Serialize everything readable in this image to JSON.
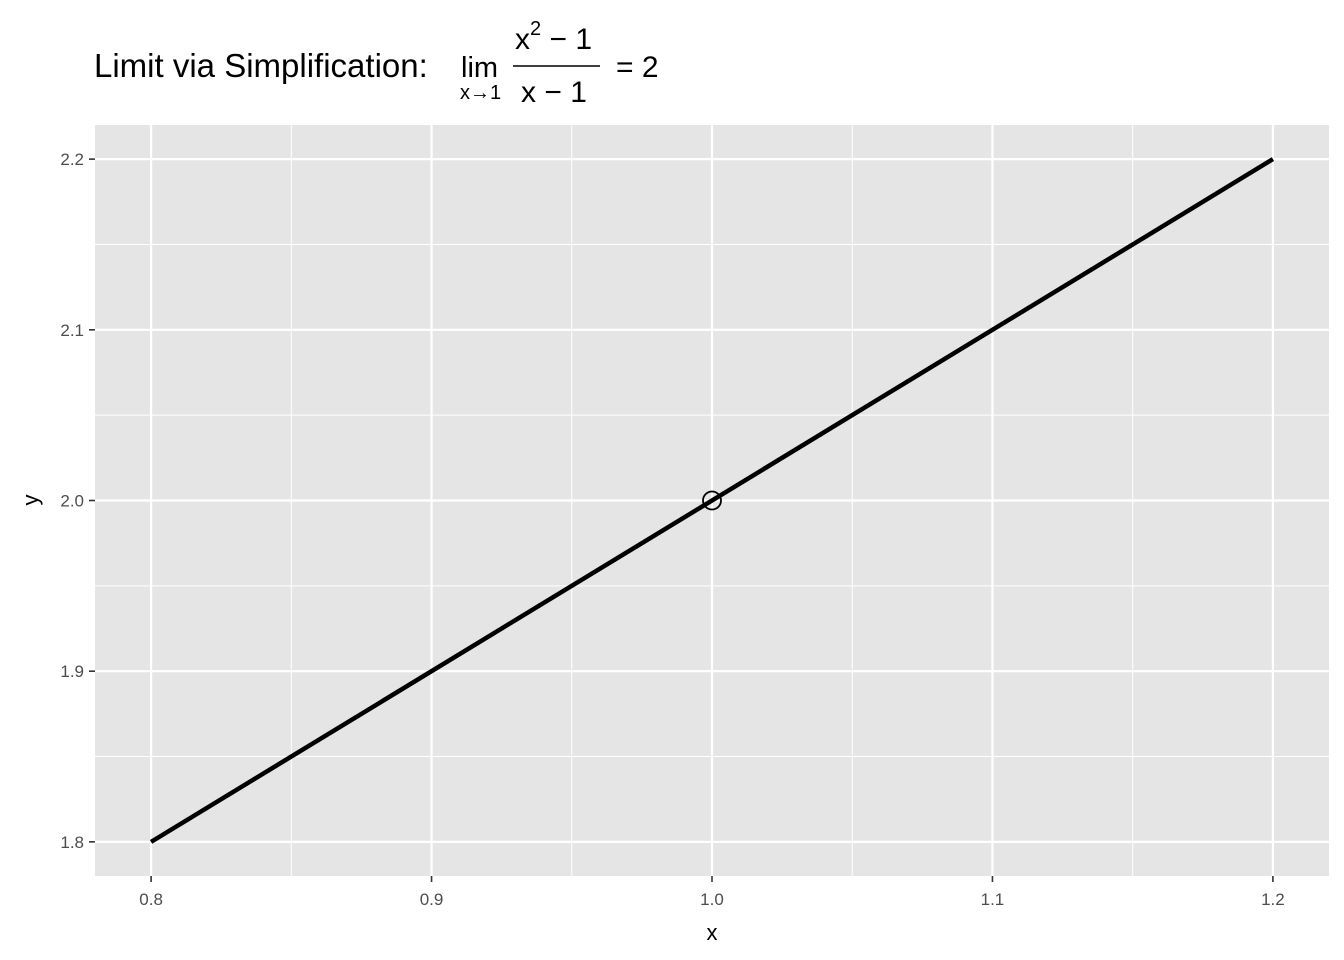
{
  "chart_data": {
    "type": "line",
    "title": {
      "prefix": "Limit via Simplification: ",
      "lim": "lim",
      "lim_sub": "x→1",
      "numerator_base": "x",
      "numerator_exp": "2",
      "numerator_rest": " − 1",
      "denominator": "x − 1",
      "result": "= 2"
    },
    "xlabel": "x",
    "ylabel": "y",
    "xlim": [
      0.78,
      1.22
    ],
    "ylim": [
      1.78,
      2.22
    ],
    "x_ticks": [
      0.8,
      0.9,
      1.0,
      1.1,
      1.2
    ],
    "x_tick_labels": [
      "0.8",
      "0.9",
      "1.0",
      "1.1",
      "1.2"
    ],
    "y_ticks": [
      1.8,
      1.9,
      2.0,
      2.1,
      2.2
    ],
    "y_tick_labels": [
      "1.8",
      "1.9",
      "2.0",
      "2.1",
      "2.2"
    ],
    "series": [
      {
        "x": [
          0.8,
          1.2
        ],
        "y": [
          1.8,
          2.2
        ],
        "color": "#000000"
      }
    ],
    "hole_point": {
      "x": 1.0,
      "y": 2.0
    },
    "grid": true,
    "panel_background": "#e5e5e5",
    "grid_color": "#ffffff"
  }
}
